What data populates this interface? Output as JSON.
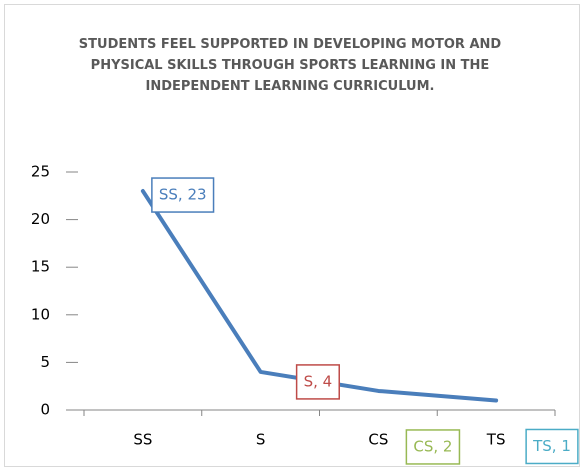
{
  "chart_data": {
    "type": "line",
    "title": "STUDENTS FEEL SUPPORTED IN DEVELOPING MOTOR AND PHYSICAL SKILLS THROUGH SPORTS LEARNING IN THE INDEPENDENT LEARNING CURRICULUM.",
    "categories": [
      "SS",
      "S",
      "CS",
      "TS"
    ],
    "series": [
      {
        "values": [
          23,
          4,
          2,
          1
        ],
        "value_labels": [
          "SS, 23",
          "S, 4",
          "CS, 2",
          "TS, 1"
        ],
        "color": "#4a7ebb"
      }
    ],
    "label_colors": [
      "#4a7ebb",
      "#be4b48",
      "#98b954",
      "#4bacc6"
    ],
    "ylim": [
      0,
      25
    ],
    "yticks": [
      0,
      5,
      10,
      15,
      20,
      25
    ]
  }
}
